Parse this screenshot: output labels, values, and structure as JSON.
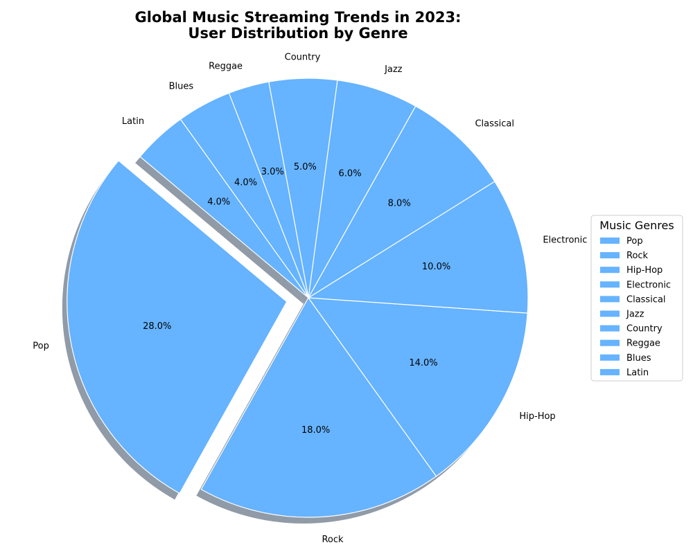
{
  "chart_data": {
    "type": "pie",
    "title_lines": [
      "Global Music Streaming Trends in 2023:",
      "User Distribution by Genre"
    ],
    "categories": [
      "Pop",
      "Rock",
      "Hip-Hop",
      "Electronic",
      "Classical",
      "Jazz",
      "Country",
      "Reggae",
      "Blues",
      "Latin"
    ],
    "values": [
      28,
      18,
      14,
      10,
      8,
      6,
      5,
      3,
      4,
      4
    ],
    "percent_labels": [
      "28.0%",
      "18.0%",
      "14.0%",
      "10.0%",
      "8.0%",
      "6.0%",
      "5.0%",
      "3.0%",
      "4.0%",
      "4.0%"
    ],
    "explode": [
      0.1,
      0,
      0,
      0,
      0,
      0,
      0,
      0,
      0,
      0
    ],
    "start_angle_deg": 140,
    "direction": "counterclockwise",
    "shadow": true,
    "slice_color": "#66b3ff",
    "edge_color": "#ffffff",
    "shadow_color": "#6b7a8a",
    "legend": {
      "title": "Music Genres",
      "position": "right"
    }
  }
}
